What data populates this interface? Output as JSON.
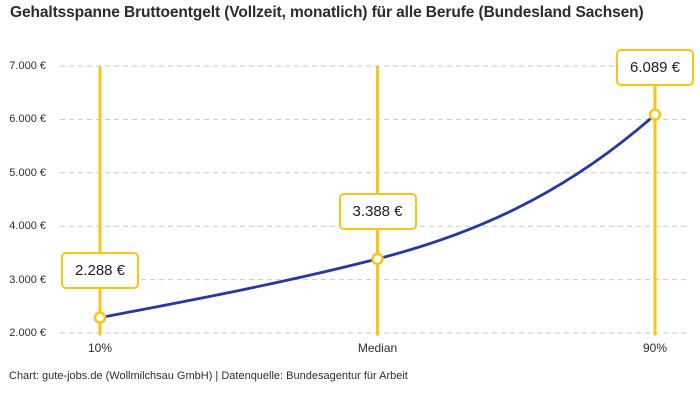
{
  "title": "Gehaltsspanne Bruttoentgelt (Vollzeit, monatlich) für alle Berufe (Bundesland Sachsen)",
  "footer": "Chart: gute-jobs.de (Wollmilchsau GmbH) | Datenquelle: Bundesagentur für Arbeit",
  "colors": {
    "accent_yellow": "#fdc413",
    "curve_blue": "#2439a5",
    "grid_gray": "#c9c9c9",
    "text_dark": "#2b2b2b",
    "background": "#ffffff"
  },
  "chart_data": {
    "type": "line",
    "title": "Gehaltsspanne Bruttoentgelt (Vollzeit, monatlich) für alle Berufe (Bundesland Sachsen)",
    "x": [
      "10%",
      "Median",
      "90%"
    ],
    "values": [
      2288,
      3388,
      6089
    ],
    "value_labels": [
      "2.288 €",
      "3.388 €",
      "6.089 €"
    ],
    "series_name": "Bruttoentgelt",
    "ylim": [
      2000,
      7000
    ],
    "yticks": [
      7000,
      6000,
      5000,
      4000,
      3000,
      2000
    ],
    "ytick_labels": [
      "7.000 €",
      "6.000 €",
      "5.000 €",
      "4.000 €",
      "3.000 €",
      "2.000 €"
    ],
    "xlabel": "",
    "ylabel": "",
    "grid": "horizontal-dashed",
    "legend": "none",
    "markers": "open-circle",
    "annotations": "vertical percentile guide lines with value callout boxes"
  }
}
